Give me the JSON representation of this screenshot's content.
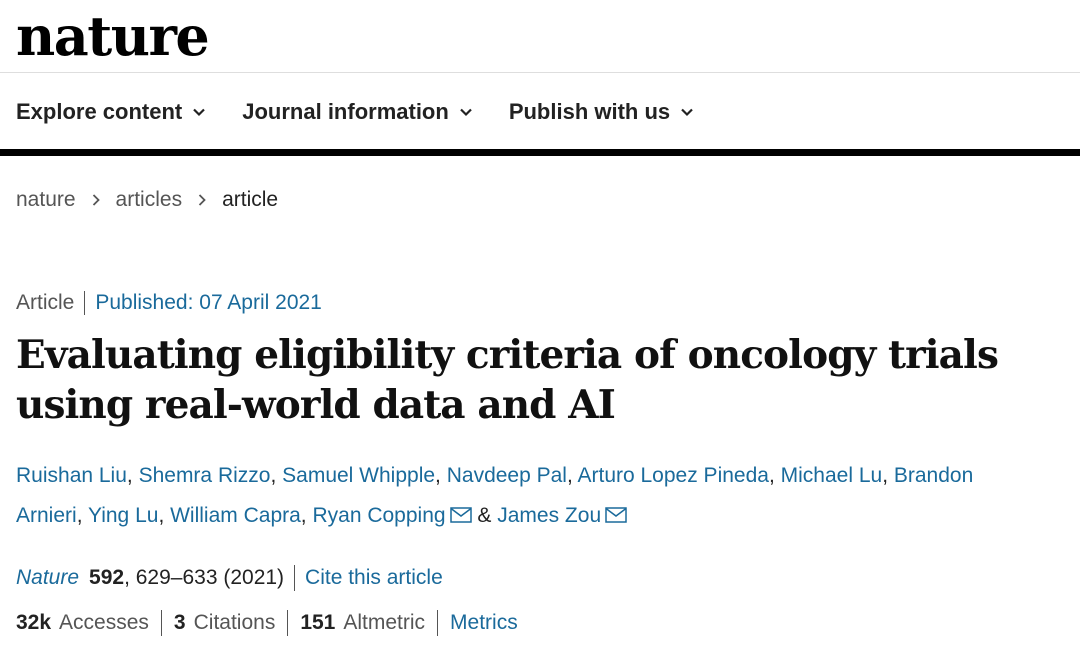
{
  "header": {
    "logo": "nature",
    "nav": [
      {
        "label": "Explore content",
        "icon": "chevron-down-icon"
      },
      {
        "label": "Journal information",
        "icon": "chevron-down-icon"
      },
      {
        "label": "Publish with us",
        "icon": "chevron-down-icon"
      }
    ]
  },
  "breadcrumb": [
    "nature",
    "articles",
    "article"
  ],
  "article": {
    "type": "Article",
    "published": "Published: 07 April 2021",
    "title": "Evaluating eligibility criteria of oncology trials using real-world data and AI",
    "authors_line1": [
      "Ruishan Liu",
      "Shemra Rizzo",
      "Samuel Whipple",
      "Navdeep Pal",
      "Arturo Lopez Pineda",
      "Michael Lu",
      "Brandon"
    ],
    "authors_line2": [
      "Arnieri",
      "Ying Lu",
      "William Capra",
      "Ryan Copping",
      "James Zou"
    ],
    "citation": {
      "journal": "Nature",
      "volume": "592",
      "pages_year": ", 629–633 (2021)",
      "cite_link": "Cite this article"
    },
    "metrics": {
      "accesses_value": "32k",
      "accesses_label": "Accesses",
      "citations_value": "3",
      "citations_label": "Citations",
      "altmetric_value": "151",
      "altmetric_label": "Altmetric",
      "metrics_link": "Metrics"
    }
  },
  "colors": {
    "link": "#1a6a9b",
    "text": "#222222",
    "muted": "#555555"
  }
}
